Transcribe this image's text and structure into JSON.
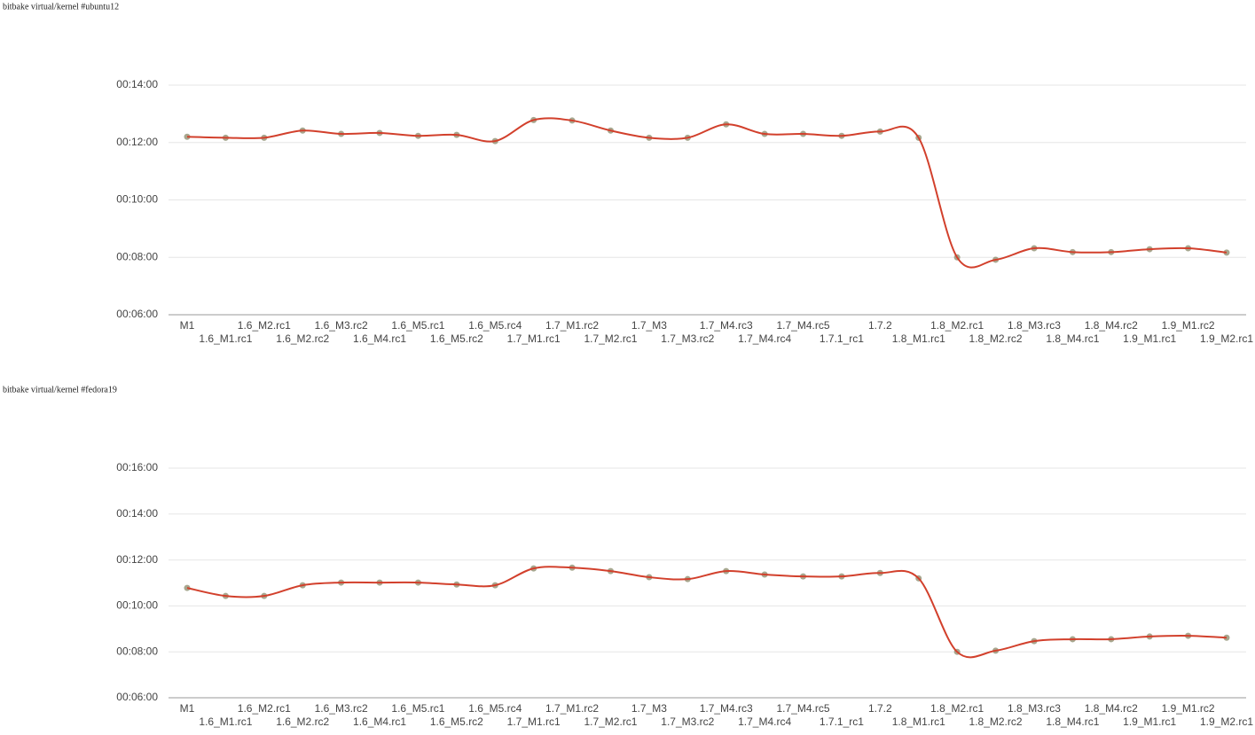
{
  "chart_data": [
    {
      "type": "line",
      "title": "bitbake virtual/kernel #ubuntu12",
      "color": "#d2402c",
      "grid": true,
      "categories": [
        "M1",
        "1.6_M1.rc1",
        "1.6_M2.rc1",
        "1.6_M2.rc2",
        "1.6_M3.rc2",
        "1.6_M4.rc1",
        "1.6_M5.rc1",
        "1.6_M5.rc2",
        "1.6_M5.rc4",
        "1.7_M1.rc1",
        "1.7_M1.rc2",
        "1.7_M2.rc1",
        "1.7_M3",
        "1.7_M3.rc2",
        "1.7_M4.rc3",
        "1.7_M4.rc4",
        "1.7_M4.rc5",
        "1.7.1_rc1",
        "1.7.2",
        "1.8_M1.rc1",
        "1.8_M2.rc1",
        "1.8_M2.rc2",
        "1.8_M3.rc3",
        "1.8_M4.rc1",
        "1.8_M4.rc2",
        "1.9_M1.rc1",
        "1.9_M1.rc2",
        "1.9_M2.rc1"
      ],
      "values": [
        732,
        730,
        730,
        745,
        738,
        740,
        734,
        736,
        723,
        767,
        766,
        745,
        730,
        730,
        758,
        738,
        738,
        734,
        743,
        730,
        480,
        475,
        499,
        491,
        491,
        497,
        499,
        490
      ],
      "ylim": [
        360,
        840
      ],
      "yticks": [
        {
          "value": 360,
          "label": "00:06:00"
        },
        {
          "value": 480,
          "label": "00:08:00"
        },
        {
          "value": 600,
          "label": "00:10:00"
        },
        {
          "value": 720,
          "label": "00:12:00"
        },
        {
          "value": 840,
          "label": "00:14:00"
        }
      ]
    },
    {
      "type": "line",
      "title": "bitbake virtual/kernel #fedora19",
      "color": "#d2402c",
      "grid": true,
      "categories": [
        "M1",
        "1.6_M1.rc1",
        "1.6_M2.rc1",
        "1.6_M2.rc2",
        "1.6_M3.rc2",
        "1.6_M4.rc1",
        "1.6_M5.rc1",
        "1.6_M5.rc2",
        "1.6_M5.rc4",
        "1.7_M1.rc1",
        "1.7_M1.rc2",
        "1.7_M2.rc1",
        "1.7_M3",
        "1.7_M3.rc2",
        "1.7_M4.rc3",
        "1.7_M4.rc4",
        "1.7_M4.rc5",
        "1.7.1_rc1",
        "1.7.2",
        "1.8_M1.rc1",
        "1.8_M2.rc1",
        "1.8_M2.rc2",
        "1.8_M3.rc3",
        "1.8_M4.rc1",
        "1.8_M4.rc2",
        "1.9_M1.rc1",
        "1.9_M1.rc2",
        "1.9_M2.rc1"
      ],
      "values": [
        647,
        626,
        626,
        654,
        661,
        661,
        661,
        656,
        654,
        698,
        700,
        691,
        675,
        670,
        691,
        682,
        677,
        677,
        686,
        672,
        480,
        483,
        508,
        513,
        513,
        520,
        522,
        517
      ],
      "ylim": [
        360,
        960
      ],
      "yticks": [
        {
          "value": 360,
          "label": "00:06:00"
        },
        {
          "value": 480,
          "label": "00:08:00"
        },
        {
          "value": 600,
          "label": "00:10:00"
        },
        {
          "value": 720,
          "label": "00:12:00"
        },
        {
          "value": 840,
          "label": "00:14:00"
        },
        {
          "value": 960,
          "label": "00:16:00"
        }
      ]
    }
  ]
}
